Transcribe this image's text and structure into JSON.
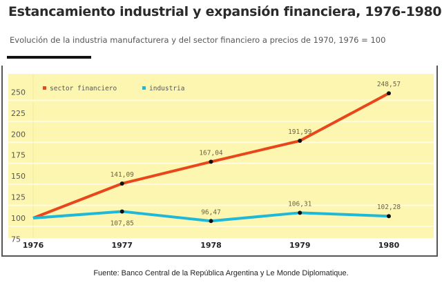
{
  "chart_data": {
    "type": "line",
    "title": "Estancamiento industrial y expansión financiera, 1976-1980",
    "subtitle": "Evolución de la industria manufacturera y del sector financiero a precios de 1970, 1976 = 100",
    "x": [
      "1976",
      "1977",
      "1978",
      "1979",
      "1980"
    ],
    "series": [
      {
        "name": "sector financiero",
        "color": "#e8471b",
        "values": [
          100,
          141.09,
          167.04,
          191.99,
          248.57
        ],
        "labels": [
          "",
          "141,09",
          "167,04",
          "191,99",
          "248,57"
        ]
      },
      {
        "name": "industria",
        "color": "#1fb8d8",
        "values": [
          100,
          107.85,
          96.47,
          106.31,
          102.28
        ],
        "labels": [
          "",
          "107,85",
          "96,47",
          "106,31",
          "102,28"
        ]
      }
    ],
    "yticks": [
      75,
      100,
      125,
      150,
      175,
      200,
      225,
      250
    ],
    "ylim": [
      75,
      255
    ],
    "grid": true,
    "legend": "top-left",
    "background": "#fdf6b0"
  },
  "source": "Fuente: Banco Central de la República Argentina y Le Monde Diplomatique."
}
